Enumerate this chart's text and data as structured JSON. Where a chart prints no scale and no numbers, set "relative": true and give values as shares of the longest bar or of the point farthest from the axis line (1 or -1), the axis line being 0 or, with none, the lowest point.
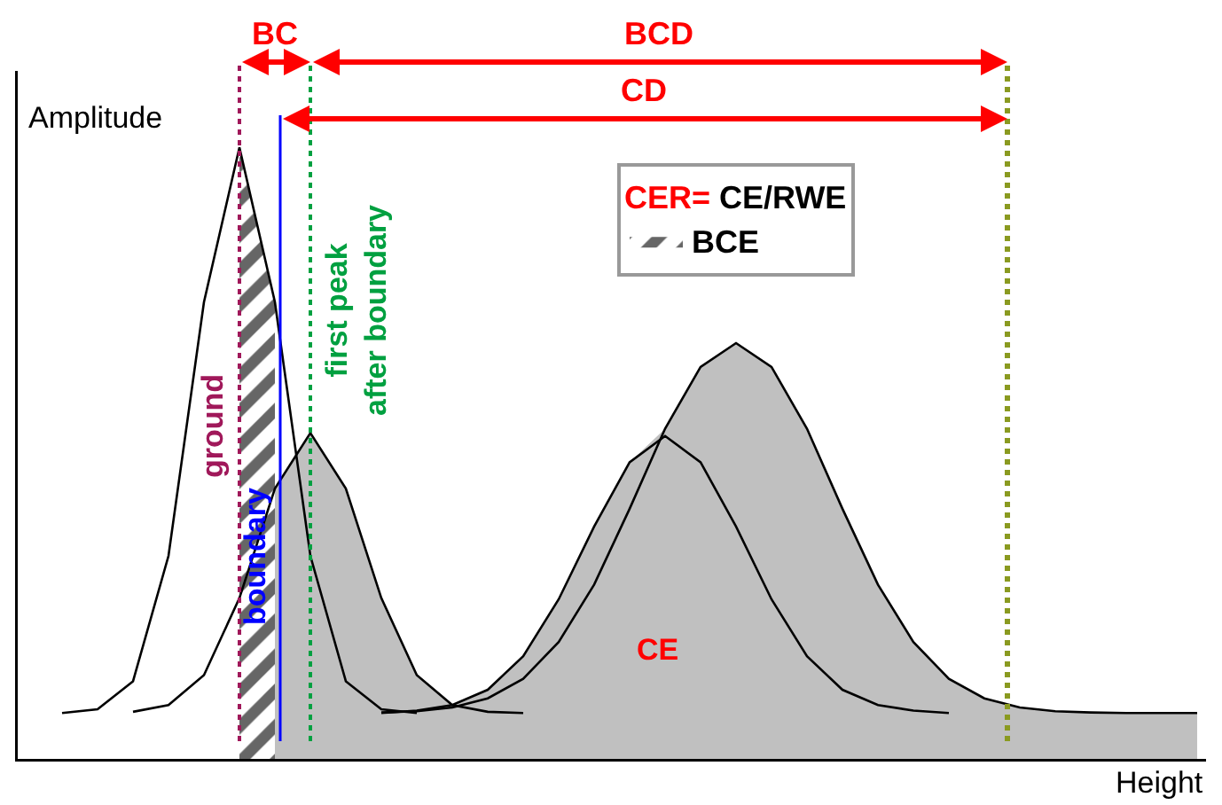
{
  "chart_data": {
    "type": "line",
    "relative": true,
    "xlabel": "Height",
    "ylabel": "Amplitude",
    "legend_title": "CER= CE/RWE",
    "legend": "top right",
    "grid": false,
    "categories": [
      null,
      null,
      null,
      null,
      null,
      null,
      null,
      null,
      null,
      null,
      null,
      null,
      null,
      null,
      null,
      null,
      null,
      null,
      null,
      null,
      null,
      null,
      null,
      null,
      null,
      null,
      null,
      null,
      null,
      null,
      null,
      null,
      null
    ],
    "series": [
      {
        "type": "line",
        "color": "#000000",
        "values": [
          0.075,
          0.081,
          0.127,
          0.332,
          0.747,
          1.0,
          0.747,
          0.332,
          0.127,
          0.081,
          0.075,
          null,
          null,
          null,
          null,
          null,
          null,
          null,
          null,
          null,
          null,
          null,
          null,
          null,
          null,
          null,
          null,
          null,
          null,
          null,
          null,
          null,
          null
        ]
      },
      {
        "type": "line",
        "color": "#000000",
        "values": [
          null,
          null,
          0.077,
          0.088,
          0.137,
          0.263,
          0.442,
          0.533,
          0.442,
          0.263,
          0.137,
          0.088,
          0.077,
          0.075,
          null,
          null,
          null,
          null,
          null,
          null,
          null,
          null,
          null,
          null,
          null,
          null,
          null,
          null,
          null,
          null,
          null,
          null,
          null
        ]
      },
      {
        "type": "line",
        "color": "#000000",
        "values": [
          null,
          null,
          null,
          null,
          null,
          null,
          null,
          null,
          null,
          0.075,
          0.079,
          0.088,
          0.113,
          0.168,
          0.261,
          0.38,
          0.485,
          0.528,
          0.485,
          0.38,
          0.261,
          0.168,
          0.113,
          0.088,
          0.079,
          0.075,
          null,
          null,
          null,
          null,
          null,
          null,
          null
        ]
      },
      {
        "type": "line",
        "color": "#000000",
        "values": [
          null,
          null,
          null,
          null,
          null,
          null,
          null,
          null,
          null,
          0.076,
          0.078,
          0.084,
          0.099,
          0.131,
          0.191,
          0.285,
          0.409,
          0.54,
          0.641,
          0.68,
          0.641,
          0.54,
          0.409,
          0.285,
          0.191,
          0.131,
          0.099,
          0.084,
          0.078,
          0.076,
          0.075,
          0.075,
          0.075
        ]
      },
      {
        "type": "area",
        "color": "#c0c0c0",
        "values": [
          null,
          null,
          null,
          null,
          null,
          null,
          0.442,
          0.533,
          0.442,
          0.263,
          0.137,
          0.088,
          0.113,
          0.168,
          0.261,
          0.38,
          0.485,
          0.54,
          0.641,
          0.68,
          0.641,
          0.54,
          0.409,
          0.285,
          0.191,
          0.131,
          0.099,
          0.084,
          0.078,
          0.076,
          0.075,
          0.075,
          0.075
        ]
      },
      {
        "type": "area",
        "name": "BCE",
        "color": "#666666",
        "values": [
          null,
          null,
          null,
          null,
          null,
          1.0,
          0.747,
          null,
          null,
          null,
          null,
          null,
          null,
          null,
          null,
          null,
          null,
          null,
          null,
          null,
          null,
          null,
          null,
          null,
          null,
          null,
          null,
          null,
          null,
          null,
          null,
          null,
          null
        ]
      }
    ],
    "annotations": [
      "BC",
      "BCD",
      "CD",
      "ground",
      "boundary",
      "first peak\nafter boundary",
      "CE"
    ]
  }
}
